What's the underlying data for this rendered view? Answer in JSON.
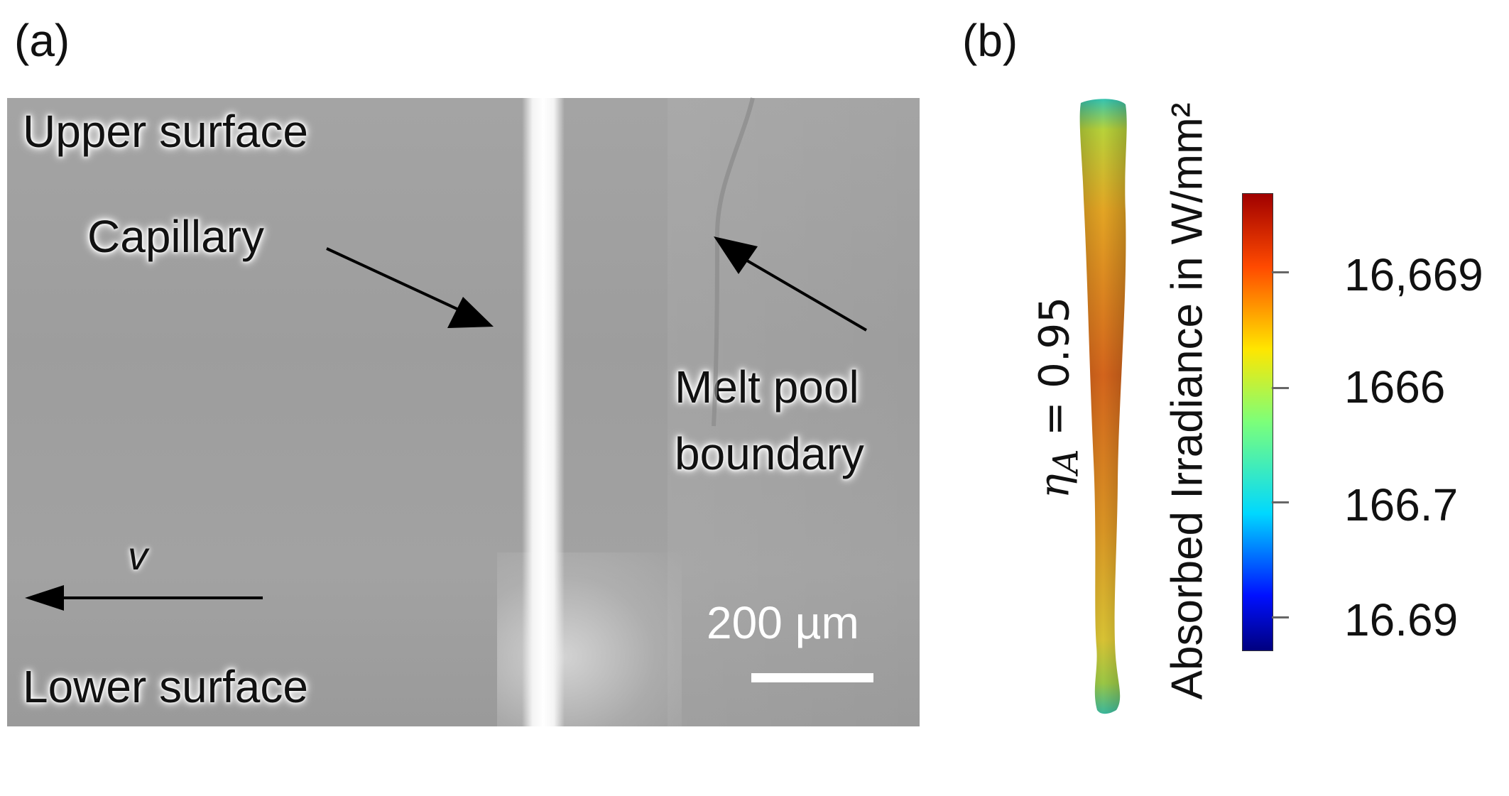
{
  "panel_a": {
    "label": "(a)",
    "upper_surface": "Upper surface",
    "lower_surface": "Lower surface",
    "capillary": "Capillary",
    "melt_pool_line1": "Melt pool",
    "melt_pool_line2": "boundary",
    "velocity_symbol": "v",
    "scale_bar_label": "200 µm"
  },
  "panel_b": {
    "label": "(b)",
    "efficiency_label": "= 0.95",
    "efficiency_symbol": "η",
    "efficiency_subscript": "A",
    "colorbar_title": "Absorbed Irradiance in W/mm²",
    "colorbar_ticks": [
      "16,669",
      "1666",
      "166.7",
      "16.69"
    ],
    "colorbar_colors": [
      "#00007f",
      "#0010ff",
      "#00d8ff",
      "#7cff7a",
      "#ffe600",
      "#ff4a00",
      "#a00000"
    ]
  }
}
